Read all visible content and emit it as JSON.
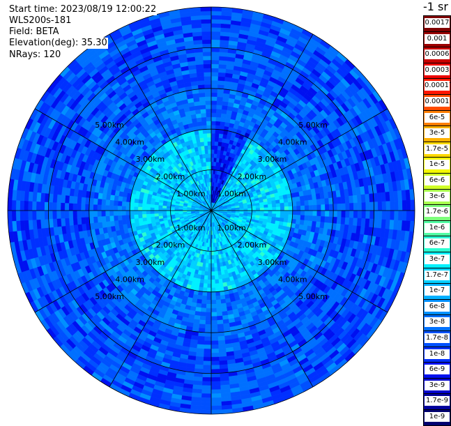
{
  "info": {
    "start_time": "Start time: 2023/08/19 12:00:22",
    "station": "WLS200s-181",
    "field": "Field: BETA",
    "elevation": "Elevation(deg): 35.30",
    "nrays": "NRays: 120"
  },
  "chart_data": {
    "type": "heatmap",
    "projection": "polar-ppi",
    "rays": 120,
    "max_range_km": 5.0,
    "range_rings_km": [
      1,
      2,
      3,
      4,
      5
    ],
    "ring_labels": [
      "1.00km",
      "2.00km",
      "3.00km",
      "4.00km",
      "5.00km"
    ],
    "spoke_angles_deg": [
      0,
      30,
      60,
      90,
      120,
      150,
      180,
      210,
      240,
      270,
      300,
      330
    ],
    "range_zones": [
      {
        "from_km": 0.0,
        "to_km": 0.5,
        "typical_beta": 1e-07
      },
      {
        "from_km": 0.5,
        "to_km": 2.0,
        "typical_beta": 1.7e-07
      },
      {
        "from_km": 2.0,
        "to_km": 3.0,
        "typical_beta": 3e-08
      },
      {
        "from_km": 3.0,
        "to_km": 5.0,
        "typical_beta": 1.7e-08
      }
    ],
    "low_sector": {
      "from_deg": 0,
      "to_deg": 25,
      "max_range_km": 2.3,
      "typical_beta": 3e-09
    }
  },
  "colorbar": {
    "title": "-1 sr",
    "entries": [
      {
        "label": "0.0017",
        "color": "#7f0000"
      },
      {
        "label": "0.001",
        "color": "#9a0000"
      },
      {
        "label": "0.0006",
        "color": "#c80000"
      },
      {
        "label": "0.0003",
        "color": "#ee0000"
      },
      {
        "label": "0.00017",
        "color": "#ff1800"
      },
      {
        "label": "0.0001",
        "color": "#ff4c00"
      },
      {
        "label": "6e-5",
        "color": "#ff7e00"
      },
      {
        "label": "3e-5",
        "color": "#ffb000"
      },
      {
        "label": "1.7e-5",
        "color": "#ffd800"
      },
      {
        "label": "1e-5",
        "color": "#f4f800"
      },
      {
        "label": "6e-6",
        "color": "#d0ff26"
      },
      {
        "label": "3e-6",
        "color": "#a8ff4e"
      },
      {
        "label": "1.7e-6",
        "color": "#7cff7a"
      },
      {
        "label": "1e-6",
        "color": "#52ffa4"
      },
      {
        "label": "6e-7",
        "color": "#2affd0"
      },
      {
        "label": "3e-7",
        "color": "#00f0ff"
      },
      {
        "label": "1.7e-7",
        "color": "#00d0ff"
      },
      {
        "label": "1e-7",
        "color": "#00b0ff"
      },
      {
        "label": "6e-8",
        "color": "#0090ff"
      },
      {
        "label": "3e-8",
        "color": "#0070ff"
      },
      {
        "label": "1.7e-8",
        "color": "#0050ff"
      },
      {
        "label": "1e-8",
        "color": "#0030ff"
      },
      {
        "label": "6e-9",
        "color": "#0010f0"
      },
      {
        "label": "3e-9",
        "color": "#0000cc"
      },
      {
        "label": "1.7e-9",
        "color": "#00009c"
      },
      {
        "label": "1e-9",
        "color": "#000070"
      }
    ]
  }
}
